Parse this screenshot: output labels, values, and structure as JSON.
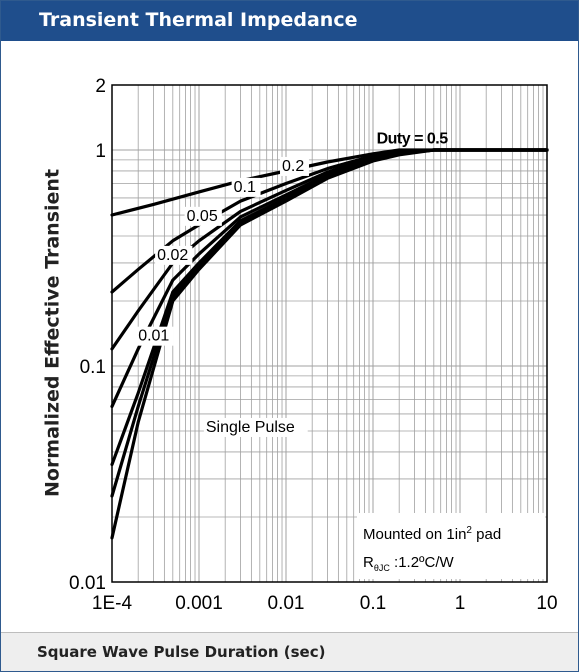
{
  "header": {
    "title": "Transient Thermal Impedance"
  },
  "footer": {
    "label": "Square Wave Pulse Duration (sec)"
  },
  "colors": {
    "header_bg": "#1f4e8c",
    "grid": "#a0a0a0",
    "curve": "#000000"
  },
  "chart_data": {
    "type": "line",
    "title": "",
    "xlabel": "",
    "ylabel": "Normalized Effective Transient",
    "x_scale": "log",
    "y_scale": "log",
    "xlim": [
      0.0001,
      10
    ],
    "ylim": [
      0.01,
      2
    ],
    "grid": true,
    "x_ticks": [
      {
        "value": 0.0001,
        "label": "1E-4"
      },
      {
        "value": 0.001,
        "label": "0.001"
      },
      {
        "value": 0.01,
        "label": "0.01"
      },
      {
        "value": 0.1,
        "label": "0.1"
      },
      {
        "value": 1,
        "label": "1"
      },
      {
        "value": 10,
        "label": "10"
      }
    ],
    "y_ticks": [
      {
        "value": 0.01,
        "label": "0.01"
      },
      {
        "value": 0.1,
        "label": "0.1"
      },
      {
        "value": 1,
        "label": "1"
      },
      {
        "value": 2,
        "label": "2"
      }
    ],
    "series": [
      {
        "name": "Duty = 0.5",
        "x": [
          0.0001,
          0.0003,
          0.001,
          0.003,
          0.01,
          0.03,
          0.1,
          0.2,
          0.5,
          1,
          10
        ],
        "y": [
          0.5,
          0.56,
          0.64,
          0.72,
          0.8,
          0.88,
          0.96,
          1.0,
          1.0,
          1.0,
          1.0
        ]
      },
      {
        "name": "0.2",
        "x": [
          0.0001,
          0.0002,
          0.0005,
          0.001,
          0.003,
          0.01,
          0.03,
          0.1,
          0.2,
          0.5,
          1,
          10
        ],
        "y": [
          0.22,
          0.28,
          0.38,
          0.45,
          0.58,
          0.7,
          0.82,
          0.94,
          0.98,
          1.0,
          1.0,
          1.0
        ]
      },
      {
        "name": "0.1",
        "x": [
          0.0001,
          0.0002,
          0.0005,
          0.001,
          0.003,
          0.01,
          0.03,
          0.1,
          0.2,
          0.5,
          1,
          10
        ],
        "y": [
          0.12,
          0.18,
          0.3,
          0.38,
          0.52,
          0.65,
          0.79,
          0.93,
          0.97,
          1.0,
          1.0,
          1.0
        ]
      },
      {
        "name": "0.05",
        "x": [
          0.0001,
          0.0002,
          0.0005,
          0.001,
          0.003,
          0.01,
          0.03,
          0.1,
          0.2,
          0.5,
          1,
          10
        ],
        "y": [
          0.065,
          0.12,
          0.25,
          0.33,
          0.49,
          0.62,
          0.77,
          0.92,
          0.97,
          1.0,
          1.0,
          1.0
        ]
      },
      {
        "name": "0.02",
        "x": [
          0.0001,
          0.0002,
          0.0005,
          0.001,
          0.003,
          0.01,
          0.03,
          0.1,
          0.2,
          0.5,
          1,
          10
        ],
        "y": [
          0.035,
          0.075,
          0.22,
          0.3,
          0.47,
          0.6,
          0.76,
          0.91,
          0.96,
          1.0,
          1.0,
          1.0
        ]
      },
      {
        "name": "0.01",
        "x": [
          0.0001,
          0.0002,
          0.0005,
          0.001,
          0.003,
          0.01,
          0.03,
          0.1,
          0.2,
          0.5,
          1,
          10
        ],
        "y": [
          0.025,
          0.065,
          0.21,
          0.29,
          0.46,
          0.59,
          0.75,
          0.9,
          0.96,
          1.0,
          1.0,
          1.0
        ]
      },
      {
        "name": "Single Pulse",
        "x": [
          0.0001,
          0.0002,
          0.0005,
          0.001,
          0.003,
          0.01,
          0.03,
          0.1,
          0.2,
          0.5,
          1,
          10
        ],
        "y": [
          0.016,
          0.055,
          0.2,
          0.28,
          0.45,
          0.58,
          0.74,
          0.89,
          0.95,
          1.0,
          1.0,
          1.0
        ]
      }
    ],
    "labels": [
      {
        "text": "Duty = 0.5",
        "x": 0.11,
        "y": 1.07
      },
      {
        "text": "0.2",
        "x": 0.009,
        "y": 0.8
      },
      {
        "text": "0.1",
        "x": 0.0025,
        "y": 0.64
      },
      {
        "text": "0.05",
        "x": 0.00072,
        "y": 0.47
      },
      {
        "text": "0.02",
        "x": 0.00033,
        "y": 0.31
      },
      {
        "text": "0.01",
        "x": 0.0002,
        "y": 0.131
      },
      {
        "text": "Single Pulse",
        "x": 0.0012,
        "y": 0.0495
      }
    ],
    "annotation": {
      "line1_prefix": "Mounted on 1in",
      "line1_sup": "2",
      "line1_suffix": " pad",
      "line2_prefix": "R",
      "line2_sub": "θJC",
      "line2_suffix": " :1.2ºC/W"
    }
  }
}
